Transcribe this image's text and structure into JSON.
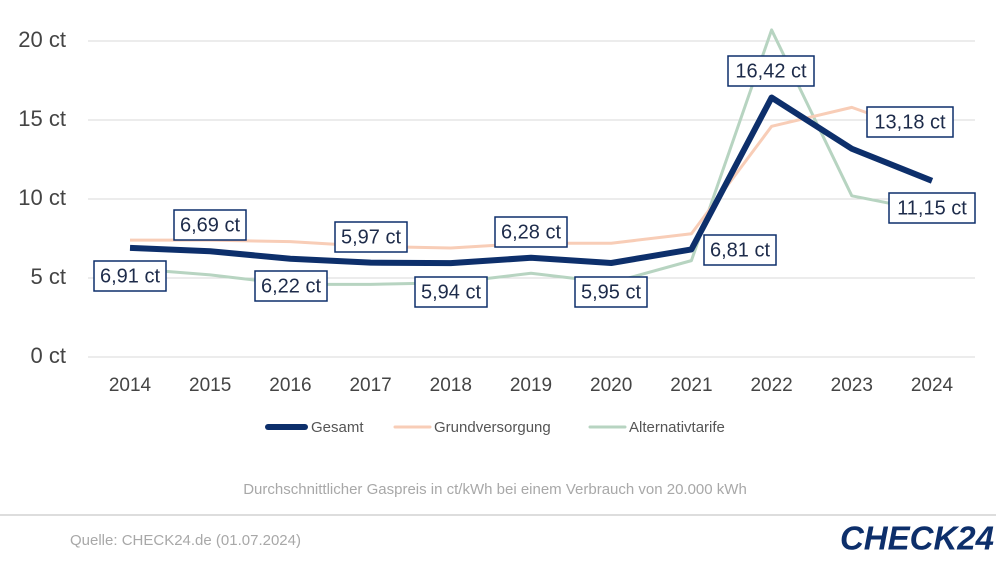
{
  "chart_data": {
    "type": "line",
    "categories": [
      "2014",
      "2015",
      "2016",
      "2017",
      "2018",
      "2019",
      "2020",
      "2021",
      "2022",
      "2023",
      "2024"
    ],
    "series": [
      {
        "name": "Gesamt",
        "color": "#0d2f6b",
        "values": [
          6.91,
          6.69,
          6.22,
          5.97,
          5.94,
          6.28,
          5.95,
          6.81,
          16.42,
          13.18,
          11.15
        ],
        "value_labels": [
          "6,91 ct",
          "6,69 ct",
          "6,22 ct",
          "5,97 ct",
          "5,94 ct",
          "6,28 ct",
          "5,95 ct",
          "6,81 ct",
          "16,42 ct",
          "13,18 ct",
          "11,15 ct"
        ]
      },
      {
        "name": "Grundversorgung",
        "color": "#f8cdb7",
        "values": [
          7.4,
          7.4,
          7.3,
          7.0,
          6.9,
          7.2,
          7.2,
          7.8,
          14.6,
          15.8,
          14.0
        ]
      },
      {
        "name": "Alternativtarife",
        "color": "#b7d4c1",
        "values": [
          5.6,
          5.2,
          4.6,
          4.6,
          4.7,
          5.3,
          4.7,
          6.1,
          20.7,
          10.2,
          9.2
        ]
      }
    ],
    "ylim": [
      0,
      20
    ],
    "yticks": [
      {
        "value": 0,
        "label": "0 ct"
      },
      {
        "value": 5,
        "label": "5 ct"
      },
      {
        "value": 10,
        "label": "10 ct"
      },
      {
        "value": 15,
        "label": "15 ct"
      },
      {
        "value": 20,
        "label": "20 ct"
      }
    ],
    "grid": true,
    "caption": "Durchschnittlicher Gaspreis in ct/kWh bei einem Verbrauch von 20.000 kWh",
    "source": "Quelle: CHECK24.de (01.07.2024)"
  },
  "brand": "CHECK24"
}
